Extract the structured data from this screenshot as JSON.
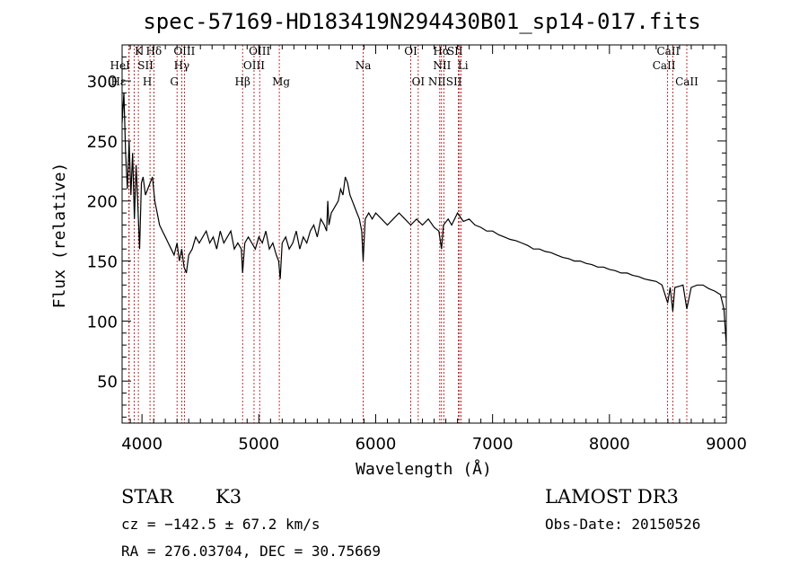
{
  "chart_data": {
    "type": "line",
    "title": "spec-57169-HD183419N294430B01_sp14-017.fits",
    "xlabel": "Wavelength (Å)",
    "ylabel": "Flux (relative)",
    "xlim": [
      3830,
      9000
    ],
    "ylim": [
      15,
      330
    ],
    "x_ticks": [
      4000,
      5000,
      6000,
      7000,
      8000,
      9000
    ],
    "y_ticks": [
      50,
      100,
      150,
      200,
      250,
      300
    ],
    "grid": false,
    "series": [
      {
        "x": [
          3830,
          3845,
          3860,
          3875,
          3890,
          3905,
          3920,
          3935,
          3950,
          3965,
          3980,
          3995,
          4010,
          4030,
          4050,
          4070,
          4090,
          4110,
          4130,
          4150,
          4175,
          4200,
          4225,
          4250,
          4275,
          4300,
          4320,
          4340,
          4360,
          4380,
          4400,
          4430,
          4460,
          4490,
          4520,
          4550,
          4580,
          4610,
          4640,
          4670,
          4700,
          4730,
          4760,
          4790,
          4820,
          4850,
          4861,
          4880,
          4910,
          4940,
          4970,
          5000,
          5030,
          5060,
          5090,
          5120,
          5150,
          5170,
          5183,
          5200,
          5230,
          5260,
          5290,
          5320,
          5350,
          5380,
          5410,
          5440,
          5470,
          5500,
          5530,
          5560,
          5580,
          5590,
          5600,
          5620,
          5650,
          5680,
          5700,
          5720,
          5740,
          5760,
          5780,
          5800,
          5820,
          5840,
          5860,
          5880,
          5893,
          5910,
          5940,
          5970,
          6000,
          6050,
          6100,
          6150,
          6200,
          6250,
          6300,
          6350,
          6400,
          6450,
          6500,
          6540,
          6563,
          6580,
          6620,
          6650,
          6700,
          6750,
          6800,
          6850,
          6900,
          6950,
          7000,
          7050,
          7100,
          7150,
          7200,
          7250,
          7300,
          7350,
          7400,
          7450,
          7500,
          7550,
          7600,
          7650,
          7700,
          7750,
          7800,
          7850,
          7900,
          7950,
          8000,
          8050,
          8100,
          8150,
          8200,
          8250,
          8300,
          8350,
          8400,
          8450,
          8498,
          8520,
          8542,
          8560,
          8600,
          8630,
          8662,
          8700,
          8750,
          8800,
          8850,
          8900,
          8950,
          8980,
          9000
        ],
        "y": [
          265,
          290,
          240,
          210,
          250,
          205,
          240,
          185,
          230,
          195,
          160,
          215,
          220,
          205,
          210,
          215,
          220,
          200,
          190,
          180,
          175,
          170,
          165,
          160,
          155,
          165,
          150,
          160,
          145,
          140,
          155,
          160,
          170,
          165,
          170,
          175,
          165,
          170,
          160,
          175,
          165,
          170,
          175,
          160,
          165,
          160,
          140,
          165,
          170,
          165,
          160,
          170,
          165,
          175,
          160,
          165,
          155,
          150,
          135,
          165,
          170,
          160,
          165,
          175,
          160,
          170,
          165,
          175,
          180,
          170,
          185,
          180,
          175,
          200,
          180,
          190,
          195,
          200,
          210,
          205,
          220,
          215,
          205,
          200,
          195,
          190,
          185,
          175,
          150,
          185,
          190,
          185,
          190,
          185,
          180,
          185,
          190,
          185,
          180,
          185,
          180,
          185,
          178,
          175,
          160,
          180,
          185,
          180,
          190,
          183,
          185,
          180,
          178,
          175,
          175,
          172,
          170,
          168,
          167,
          165,
          163,
          160,
          160,
          158,
          157,
          155,
          153,
          152,
          150,
          150,
          148,
          147,
          145,
          145,
          143,
          142,
          140,
          140,
          138,
          137,
          135,
          134,
          133,
          130,
          115,
          128,
          108,
          128,
          129,
          130,
          110,
          128,
          130,
          130,
          127,
          125,
          122,
          110,
          80
        ]
      }
    ],
    "spectral_lines": [
      {
        "name": "K",
        "wl": 3934
      },
      {
        "name": "H",
        "wl": 3969
      },
      {
        "name": "Hε",
        "wl": 3890
      },
      {
        "name": "HeI",
        "wl": 3889
      },
      {
        "name": "Hδ",
        "wl": 4102
      },
      {
        "name": "SII",
        "wl": 4069
      },
      {
        "name": "OIII",
        "wl": 4363
      },
      {
        "name": "Hγ",
        "wl": 4340
      },
      {
        "name": "G",
        "wl": 4300
      },
      {
        "name": "Hβ",
        "wl": 4861
      },
      {
        "name": "OIII",
        "wl": 5007
      },
      {
        "name": "OIII",
        "wl": 4959
      },
      {
        "name": "Mg",
        "wl": 5175
      },
      {
        "name": "Na",
        "wl": 5893
      },
      {
        "name": "OI",
        "wl": 6300
      },
      {
        "name": "OI",
        "wl": 6364
      },
      {
        "name": "Hα",
        "wl": 6563
      },
      {
        "name": "NII",
        "wl": 6583
      },
      {
        "name": "NII",
        "wl": 6548
      },
      {
        "name": "SII",
        "wl": 6717
      },
      {
        "name": "SII",
        "wl": 6731
      },
      {
        "name": "Li",
        "wl": 6708
      },
      {
        "name": "CaII",
        "wl": 8542
      },
      {
        "name": "CaII",
        "wl": 8498
      },
      {
        "name": "CaII",
        "wl": 8662
      }
    ]
  },
  "info": {
    "object_class": "STAR",
    "subclass": "K3",
    "survey": "LAMOST DR3",
    "cz": "cz = −142.5 ± 67.2 km/s",
    "obs_date": "Obs-Date: 20150526",
    "coords": "RA = 276.03704, DEC =  30.75669"
  },
  "colors": {
    "spectrum": "#000000",
    "line_markers": "#aa0000"
  }
}
